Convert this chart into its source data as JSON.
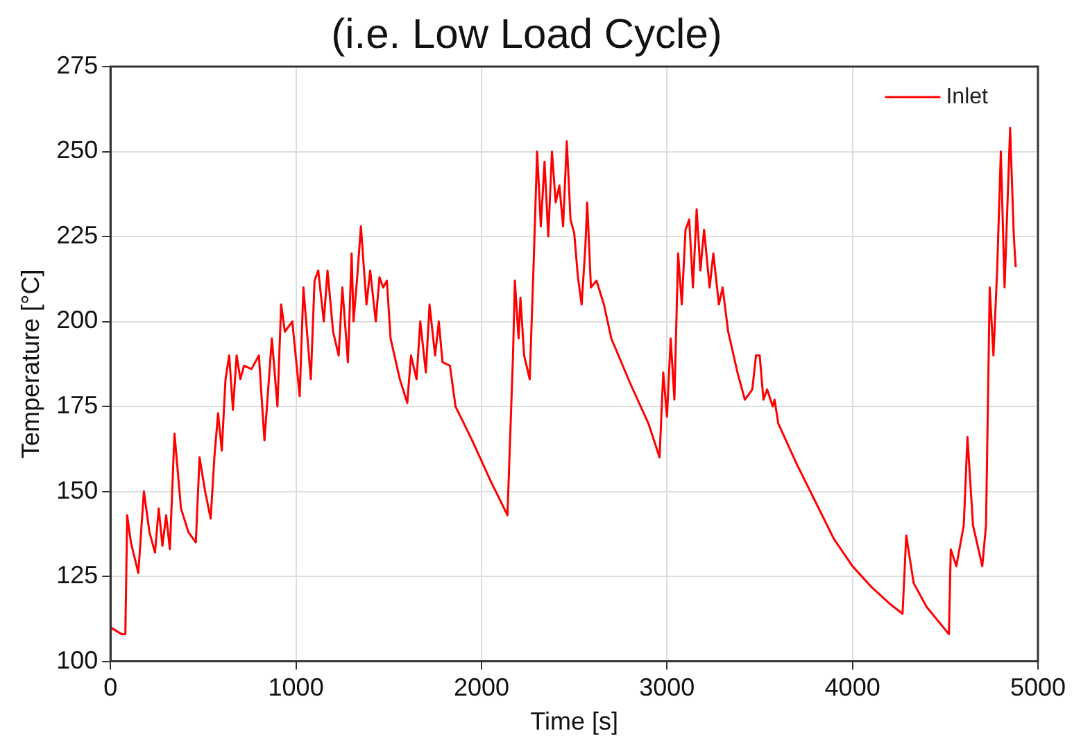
{
  "chart_data": {
    "type": "line",
    "title": "(i.e. Low Load Cycle)",
    "xlabel": "Time [s]",
    "ylabel": "Temperature [°C]",
    "x": [
      0,
      60,
      80,
      90,
      110,
      150,
      180,
      210,
      240,
      260,
      280,
      300,
      320,
      345,
      380,
      420,
      460,
      480,
      510,
      540,
      560,
      580,
      600,
      620,
      640,
      660,
      680,
      700,
      720,
      760,
      800,
      830,
      870,
      900,
      920,
      940,
      980,
      1020,
      1040,
      1080,
      1100,
      1120,
      1150,
      1170,
      1200,
      1230,
      1250,
      1280,
      1300,
      1310,
      1330,
      1350,
      1380,
      1400,
      1430,
      1450,
      1470,
      1490,
      1510,
      1560,
      1600,
      1620,
      1650,
      1670,
      1700,
      1720,
      1750,
      1770,
      1790,
      1830,
      1860,
      1950,
      2050,
      2140,
      2170,
      2180,
      2200,
      2210,
      2230,
      2260,
      2280,
      2300,
      2320,
      2340,
      2360,
      2380,
      2400,
      2420,
      2440,
      2460,
      2480,
      2500,
      2520,
      2540,
      2560,
      2570,
      2590,
      2620,
      2660,
      2700,
      2800,
      2900,
      2960,
      2980,
      3000,
      3020,
      3040,
      3060,
      3080,
      3100,
      3120,
      3140,
      3160,
      3180,
      3200,
      3230,
      3250,
      3280,
      3300,
      3330,
      3380,
      3420,
      3460,
      3480,
      3500,
      3520,
      3540,
      3570,
      3580,
      3600,
      3700,
      3800,
      3900,
      4000,
      4100,
      4200,
      4270,
      4290,
      4330,
      4400,
      4520,
      4530,
      4560,
      4600,
      4620,
      4650,
      4700,
      4720,
      4740,
      4760,
      4780,
      4800,
      4820,
      4850,
      4870,
      4880
    ],
    "series": [
      {
        "name": "Inlet",
        "color": "#ff0000",
        "values": [
          110,
          108,
          108,
          143,
          135,
          126,
          150,
          138,
          132,
          145,
          134,
          143,
          133,
          167,
          145,
          138,
          135,
          160,
          150,
          142,
          160,
          173,
          162,
          183,
          190,
          174,
          190,
          183,
          187,
          186,
          190,
          165,
          195,
          175,
          205,
          197,
          200,
          178,
          210,
          183,
          212,
          215,
          200,
          215,
          197,
          190,
          210,
          188,
          220,
          200,
          213,
          228,
          205,
          215,
          200,
          213,
          210,
          212,
          195,
          183,
          176,
          190,
          183,
          200,
          185,
          205,
          190,
          200,
          188,
          187,
          175,
          165,
          153,
          143,
          190,
          212,
          195,
          207,
          190,
          183,
          215,
          250,
          228,
          247,
          225,
          250,
          235,
          240,
          228,
          253,
          230,
          226,
          213,
          205,
          222,
          235,
          210,
          212,
          205,
          195,
          182,
          170,
          160,
          185,
          172,
          195,
          177,
          220,
          205,
          227,
          230,
          210,
          233,
          215,
          227,
          210,
          220,
          205,
          210,
          197,
          185,
          177,
          180,
          190,
          190,
          177,
          180,
          175,
          177,
          170,
          158,
          147,
          136,
          128,
          122,
          117,
          114,
          137,
          123,
          116,
          108,
          133,
          128,
          140,
          166,
          140,
          128,
          140,
          210,
          190,
          215,
          250,
          210,
          257,
          225,
          216
        ]
      }
    ],
    "xlim": [
      0,
      5000
    ],
    "xticks": [
      0,
      1000,
      2000,
      3000,
      4000,
      5000
    ],
    "ylim": [
      100,
      275
    ],
    "yticks": [
      100,
      125,
      150,
      175,
      200,
      225,
      250,
      275
    ],
    "grid": true,
    "legend": "top right",
    "marker": "none",
    "line_style": "solid"
  }
}
